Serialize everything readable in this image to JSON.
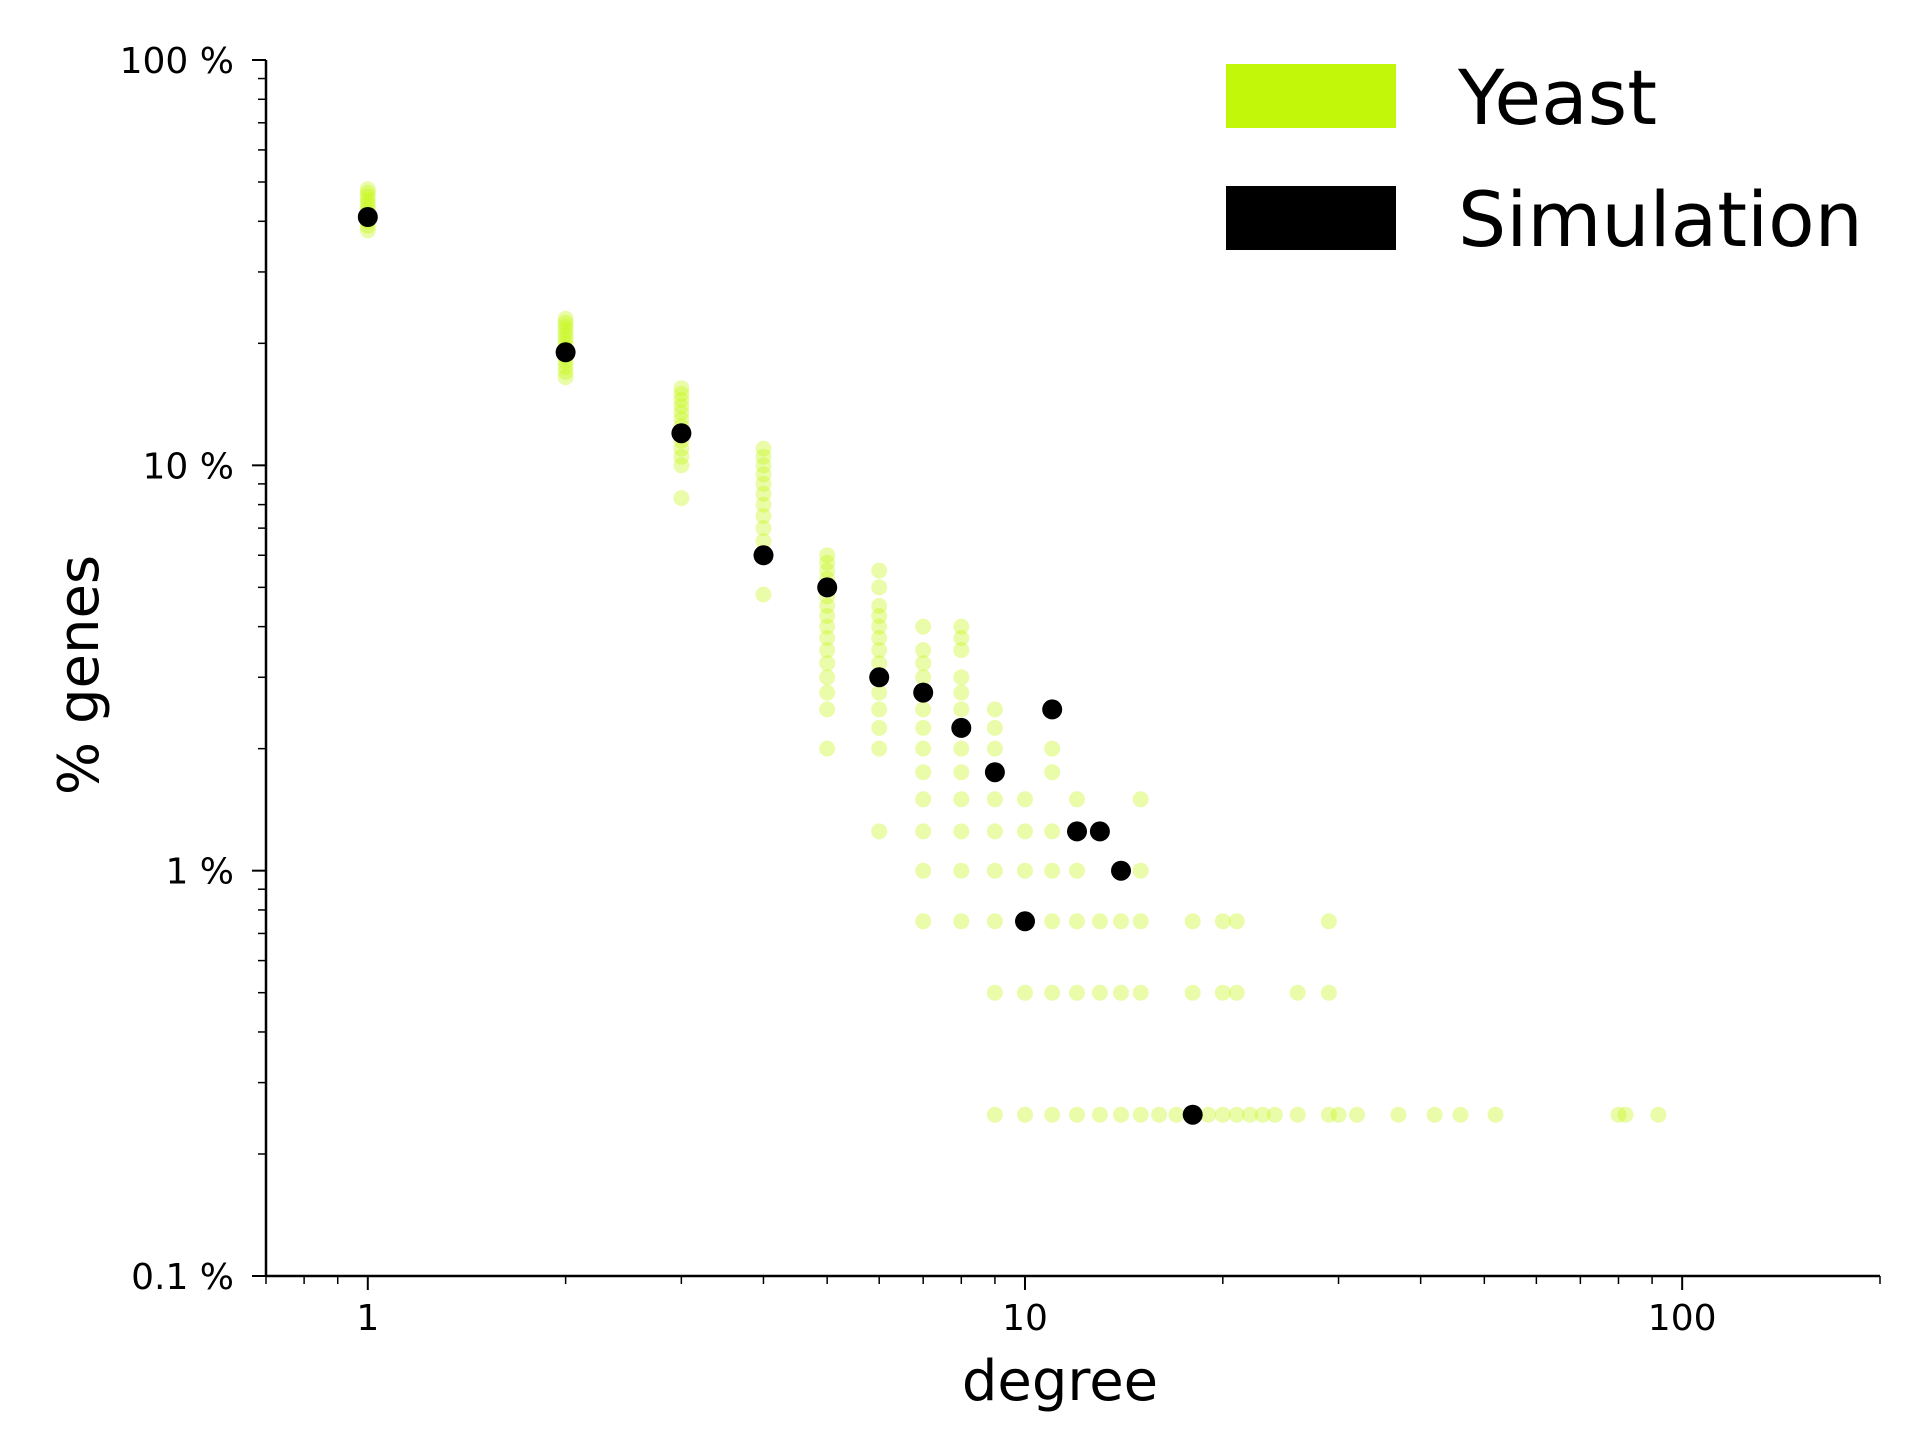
{
  "chart_data": {
    "type": "scatter",
    "title": "",
    "xlabel": "degree",
    "ylabel": "% genes",
    "xscale": "log",
    "yscale": "log",
    "xlim": [
      0.7,
      200
    ],
    "ylim": [
      0.1,
      100
    ],
    "x_ticks": [
      1,
      10,
      100
    ],
    "x_tick_labels": [
      "1",
      "10",
      "100"
    ],
    "y_ticks": [
      0.1,
      1,
      10,
      100
    ],
    "y_tick_labels": [
      "0.1 %",
      "1 %",
      "10 %",
      "100 %"
    ],
    "grid": false,
    "legend_position": "top-right",
    "colors": {
      "yeast": "#c2f70a",
      "simulation": "#000000"
    },
    "series": [
      {
        "name": "Yeast",
        "marker": "circle",
        "alpha": 0.35,
        "points": [
          {
            "x": 1,
            "y": 38
          },
          {
            "x": 1,
            "y": 39
          },
          {
            "x": 1,
            "y": 40
          },
          {
            "x": 1,
            "y": 41
          },
          {
            "x": 1,
            "y": 42
          },
          {
            "x": 1,
            "y": 43
          },
          {
            "x": 1,
            "y": 44
          },
          {
            "x": 1,
            "y": 45
          },
          {
            "x": 1,
            "y": 46
          },
          {
            "x": 1,
            "y": 47
          },
          {
            "x": 1,
            "y": 48
          },
          {
            "x": 2,
            "y": 16.5
          },
          {
            "x": 2,
            "y": 17
          },
          {
            "x": 2,
            "y": 17.5
          },
          {
            "x": 2,
            "y": 18
          },
          {
            "x": 2,
            "y": 18.5
          },
          {
            "x": 2,
            "y": 19
          },
          {
            "x": 2,
            "y": 19.5
          },
          {
            "x": 2,
            "y": 20
          },
          {
            "x": 2,
            "y": 20.5
          },
          {
            "x": 2,
            "y": 21
          },
          {
            "x": 2,
            "y": 21.5
          },
          {
            "x": 2,
            "y": 22
          },
          {
            "x": 2,
            "y": 22.5
          },
          {
            "x": 2,
            "y": 23
          },
          {
            "x": 3,
            "y": 8.3
          },
          {
            "x": 3,
            "y": 10
          },
          {
            "x": 3,
            "y": 10.5
          },
          {
            "x": 3,
            "y": 11
          },
          {
            "x": 3,
            "y": 11.5
          },
          {
            "x": 3,
            "y": 12
          },
          {
            "x": 3,
            "y": 12.5
          },
          {
            "x": 3,
            "y": 13
          },
          {
            "x": 3,
            "y": 13.5
          },
          {
            "x": 3,
            "y": 14
          },
          {
            "x": 3,
            "y": 14.5
          },
          {
            "x": 3,
            "y": 15
          },
          {
            "x": 3,
            "y": 15.5
          },
          {
            "x": 4,
            "y": 4.8
          },
          {
            "x": 4,
            "y": 6.5
          },
          {
            "x": 4,
            "y": 7
          },
          {
            "x": 4,
            "y": 7.5
          },
          {
            "x": 4,
            "y": 8
          },
          {
            "x": 4,
            "y": 8.5
          },
          {
            "x": 4,
            "y": 9
          },
          {
            "x": 4,
            "y": 9.5
          },
          {
            "x": 4,
            "y": 10
          },
          {
            "x": 4,
            "y": 10.5
          },
          {
            "x": 4,
            "y": 11
          },
          {
            "x": 5,
            "y": 2
          },
          {
            "x": 5,
            "y": 2.5
          },
          {
            "x": 5,
            "y": 2.75
          },
          {
            "x": 5,
            "y": 3
          },
          {
            "x": 5,
            "y": 3.25
          },
          {
            "x": 5,
            "y": 3.5
          },
          {
            "x": 5,
            "y": 3.75
          },
          {
            "x": 5,
            "y": 4
          },
          {
            "x": 5,
            "y": 4.25
          },
          {
            "x": 5,
            "y": 4.5
          },
          {
            "x": 5,
            "y": 4.75
          },
          {
            "x": 5,
            "y": 5
          },
          {
            "x": 5,
            "y": 5.25
          },
          {
            "x": 5,
            "y": 5.5
          },
          {
            "x": 5,
            "y": 5.75
          },
          {
            "x": 5,
            "y": 6
          },
          {
            "x": 6,
            "y": 1.25
          },
          {
            "x": 6,
            "y": 2
          },
          {
            "x": 6,
            "y": 2.25
          },
          {
            "x": 6,
            "y": 2.5
          },
          {
            "x": 6,
            "y": 2.75
          },
          {
            "x": 6,
            "y": 3.25
          },
          {
            "x": 6,
            "y": 3.5
          },
          {
            "x": 6,
            "y": 3.75
          },
          {
            "x": 6,
            "y": 4
          },
          {
            "x": 6,
            "y": 4.25
          },
          {
            "x": 6,
            "y": 4.5
          },
          {
            "x": 6,
            "y": 5
          },
          {
            "x": 6,
            "y": 5.5
          },
          {
            "x": 7,
            "y": 0.75
          },
          {
            "x": 7,
            "y": 1
          },
          {
            "x": 7,
            "y": 1.25
          },
          {
            "x": 7,
            "y": 1.5
          },
          {
            "x": 7,
            "y": 1.75
          },
          {
            "x": 7,
            "y": 2
          },
          {
            "x": 7,
            "y": 2.25
          },
          {
            "x": 7,
            "y": 2.5
          },
          {
            "x": 7,
            "y": 3
          },
          {
            "x": 7,
            "y": 3.25
          },
          {
            "x": 7,
            "y": 3.5
          },
          {
            "x": 7,
            "y": 4
          },
          {
            "x": 8,
            "y": 0.75
          },
          {
            "x": 8,
            "y": 1
          },
          {
            "x": 8,
            "y": 1.25
          },
          {
            "x": 8,
            "y": 1.5
          },
          {
            "x": 8,
            "y": 1.75
          },
          {
            "x": 8,
            "y": 2
          },
          {
            "x": 8,
            "y": 2.5
          },
          {
            "x": 8,
            "y": 2.75
          },
          {
            "x": 8,
            "y": 3
          },
          {
            "x": 8,
            "y": 3.5
          },
          {
            "x": 8,
            "y": 3.75
          },
          {
            "x": 8,
            "y": 4
          },
          {
            "x": 9,
            "y": 0.25
          },
          {
            "x": 9,
            "y": 0.5
          },
          {
            "x": 9,
            "y": 0.75
          },
          {
            "x": 9,
            "y": 1
          },
          {
            "x": 9,
            "y": 1.25
          },
          {
            "x": 9,
            "y": 1.5
          },
          {
            "x": 9,
            "y": 2
          },
          {
            "x": 9,
            "y": 2.25
          },
          {
            "x": 9,
            "y": 2.5
          },
          {
            "x": 10,
            "y": 0.25
          },
          {
            "x": 10,
            "y": 0.5
          },
          {
            "x": 10,
            "y": 1
          },
          {
            "x": 10,
            "y": 1.25
          },
          {
            "x": 10,
            "y": 1.5
          },
          {
            "x": 11,
            "y": 0.25
          },
          {
            "x": 11,
            "y": 0.5
          },
          {
            "x": 11,
            "y": 0.75
          },
          {
            "x": 11,
            "y": 1
          },
          {
            "x": 11,
            "y": 1.25
          },
          {
            "x": 11,
            "y": 1.75
          },
          {
            "x": 11,
            "y": 2
          },
          {
            "x": 12,
            "y": 0.25
          },
          {
            "x": 12,
            "y": 0.5
          },
          {
            "x": 12,
            "y": 0.75
          },
          {
            "x": 12,
            "y": 1
          },
          {
            "x": 12,
            "y": 1.5
          },
          {
            "x": 13,
            "y": 0.25
          },
          {
            "x": 13,
            "y": 0.5
          },
          {
            "x": 13,
            "y": 0.75
          },
          {
            "x": 14,
            "y": 0.25
          },
          {
            "x": 14,
            "y": 0.5
          },
          {
            "x": 14,
            "y": 0.75
          },
          {
            "x": 15,
            "y": 0.25
          },
          {
            "x": 15,
            "y": 0.5
          },
          {
            "x": 15,
            "y": 0.75
          },
          {
            "x": 15,
            "y": 1
          },
          {
            "x": 15,
            "y": 1.5
          },
          {
            "x": 16,
            "y": 0.25
          },
          {
            "x": 17,
            "y": 0.25
          },
          {
            "x": 18,
            "y": 0.25
          },
          {
            "x": 18,
            "y": 0.5
          },
          {
            "x": 18,
            "y": 0.75
          },
          {
            "x": 19,
            "y": 0.25
          },
          {
            "x": 20,
            "y": 0.25
          },
          {
            "x": 20,
            "y": 0.5
          },
          {
            "x": 20,
            "y": 0.75
          },
          {
            "x": 21,
            "y": 0.25
          },
          {
            "x": 21,
            "y": 0.5
          },
          {
            "x": 21,
            "y": 0.75
          },
          {
            "x": 22,
            "y": 0.25
          },
          {
            "x": 23,
            "y": 0.25
          },
          {
            "x": 24,
            "y": 0.25
          },
          {
            "x": 26,
            "y": 0.25
          },
          {
            "x": 26,
            "y": 0.5
          },
          {
            "x": 29,
            "y": 0.25
          },
          {
            "x": 29,
            "y": 0.5
          },
          {
            "x": 29,
            "y": 0.75
          },
          {
            "x": 30,
            "y": 0.25
          },
          {
            "x": 32,
            "y": 0.25
          },
          {
            "x": 37,
            "y": 0.25
          },
          {
            "x": 42,
            "y": 0.25
          },
          {
            "x": 46,
            "y": 0.25
          },
          {
            "x": 52,
            "y": 0.25
          },
          {
            "x": 80,
            "y": 0.25
          },
          {
            "x": 82,
            "y": 0.25
          },
          {
            "x": 92,
            "y": 0.25
          }
        ]
      },
      {
        "name": "Simulation",
        "marker": "circle",
        "alpha": 1,
        "points": [
          {
            "x": 1,
            "y": 41
          },
          {
            "x": 2,
            "y": 19
          },
          {
            "x": 3,
            "y": 12
          },
          {
            "x": 4,
            "y": 6
          },
          {
            "x": 5,
            "y": 5
          },
          {
            "x": 6,
            "y": 3
          },
          {
            "x": 7,
            "y": 2.75
          },
          {
            "x": 8,
            "y": 2.25
          },
          {
            "x": 9,
            "y": 1.75
          },
          {
            "x": 10,
            "y": 0.75
          },
          {
            "x": 11,
            "y": 2.5
          },
          {
            "x": 12,
            "y": 1.25
          },
          {
            "x": 13,
            "y": 1.25
          },
          {
            "x": 14,
            "y": 1
          },
          {
            "x": 18,
            "y": 0.25
          }
        ]
      }
    ]
  }
}
